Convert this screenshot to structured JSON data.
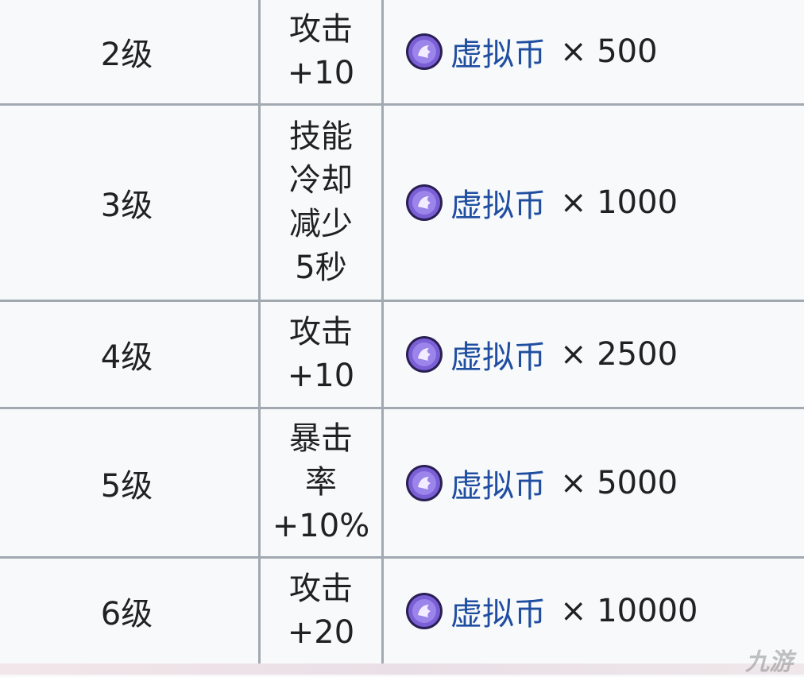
{
  "table": {
    "rows": [
      {
        "level": "2级",
        "effect": [
          "攻击",
          "+10"
        ],
        "currency": "虚拟币",
        "amount": "× 500"
      },
      {
        "level": "3级",
        "effect": [
          "技能",
          "冷却",
          "减少",
          "5秒"
        ],
        "currency": "虚拟币",
        "amount": "× 1000"
      },
      {
        "level": "4级",
        "effect": [
          "攻击",
          "+10"
        ],
        "currency": "虚拟币",
        "amount": "× 2500"
      },
      {
        "level": "5级",
        "effect": [
          "暴击",
          "率",
          "+10%"
        ],
        "currency": "虚拟币",
        "amount": "× 5000"
      },
      {
        "level": "6级",
        "effect": [
          "攻击",
          "+20"
        ],
        "currency": "虚拟币",
        "amount": "× 10000"
      }
    ]
  },
  "watermark": "九游"
}
